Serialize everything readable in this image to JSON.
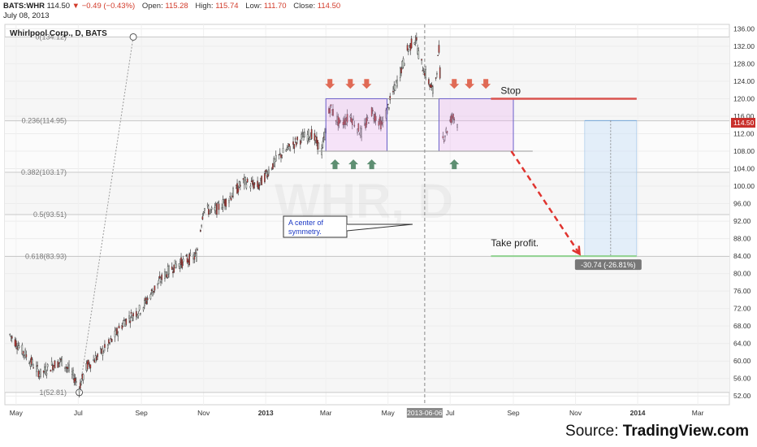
{
  "header": {
    "symbol": "BATS:WHR",
    "price": "114.50",
    "change": "▼ −0.49 (−0.43%)",
    "open_label": "Open:",
    "open": "115.28",
    "high_label": "High:",
    "high": "115.74",
    "low_label": "Low:",
    "low": "111.70",
    "close_label": "Close:",
    "close": "114.50",
    "date": "July 08, 2013"
  },
  "chart_data": {
    "type": "candlestick",
    "title": "Whirlpool Corp., D, BATS",
    "watermark": "WHR, D",
    "x_ticks": [
      "May",
      "Jul",
      "Sep",
      "Nov",
      "2013",
      "Mar",
      "May",
      "Jul",
      "Sep",
      "Nov",
      "2014",
      "Mar"
    ],
    "x_tick_dates": [
      "2012-05-01",
      "2012-07-01",
      "2012-09-01",
      "2012-11-01",
      "2013-01-01",
      "2013-03-01",
      "2013-05-01",
      "2013-07-01",
      "2013-09-01",
      "2013-11-01",
      "2014-01-01",
      "2014-03-01"
    ],
    "x_range": [
      "2012-04-20",
      "2014-04-01"
    ],
    "y_ticks": [
      52,
      56,
      60,
      64,
      68,
      72,
      76,
      80,
      84,
      88,
      92,
      96,
      100,
      104,
      108,
      112,
      116,
      120,
      124,
      128,
      132,
      136
    ],
    "y_range": [
      50,
      137
    ],
    "last_price_label": "114.50",
    "cursor_date": "2013-06-06",
    "fib_levels": [
      {
        "label": "0(134.12)",
        "value": 134.12
      },
      {
        "label": "0.236(114.95)",
        "value": 114.95
      },
      {
        "label": "0.382(103.17)",
        "value": 103.17
      },
      {
        "label": "0.5(93.51)",
        "value": 93.51
      },
      {
        "label": "0.618(83.93)",
        "value": 83.93
      },
      {
        "label": "1(52.81)",
        "value": 52.81
      }
    ],
    "price_path": [
      [
        "2012-04-25",
        66
      ],
      [
        "2012-05-05",
        63
      ],
      [
        "2012-05-15",
        60
      ],
      [
        "2012-05-25",
        57
      ],
      [
        "2012-06-05",
        59
      ],
      [
        "2012-06-15",
        60
      ],
      [
        "2012-06-25",
        57
      ],
      [
        "2012-07-02",
        54
      ],
      [
        "2012-07-10",
        59
      ],
      [
        "2012-07-20",
        61
      ],
      [
        "2012-08-01",
        64
      ],
      [
        "2012-08-15",
        69
      ],
      [
        "2012-09-01",
        72
      ],
      [
        "2012-09-15",
        77
      ],
      [
        "2012-09-25",
        80
      ],
      [
        "2012-10-05",
        82
      ],
      [
        "2012-10-15",
        83
      ],
      [
        "2012-10-25",
        84
      ],
      [
        "2012-11-01",
        95
      ],
      [
        "2012-11-10",
        94
      ],
      [
        "2012-11-25",
        97
      ],
      [
        "2012-12-10",
        101
      ],
      [
        "2012-12-25",
        100
      ],
      [
        "2013-01-05",
        104
      ],
      [
        "2013-01-15",
        107
      ],
      [
        "2013-01-25",
        109
      ],
      [
        "2013-02-05",
        111
      ],
      [
        "2013-02-15",
        112
      ],
      [
        "2013-02-25",
        108
      ],
      [
        "2013-03-05",
        118
      ],
      [
        "2013-03-15",
        114
      ],
      [
        "2013-03-25",
        116
      ],
      [
        "2013-04-05",
        112
      ],
      [
        "2013-04-15",
        117
      ],
      [
        "2013-04-25",
        114
      ],
      [
        "2013-05-01",
        118
      ],
      [
        "2013-05-10",
        124
      ],
      [
        "2013-05-20",
        131
      ],
      [
        "2013-05-28",
        134
      ],
      [
        "2013-06-01",
        129
      ],
      [
        "2013-06-08",
        125
      ],
      [
        "2013-06-15",
        121
      ],
      [
        "2013-06-20",
        131
      ],
      [
        "2013-06-24",
        111
      ],
      [
        "2013-06-28",
        113
      ],
      [
        "2013-07-03",
        116
      ],
      [
        "2013-07-08",
        114.5
      ]
    ],
    "boxes": [
      {
        "from": "2013-03-01",
        "to": "2013-04-30",
        "low": 108,
        "high": 120
      },
      {
        "from": "2013-06-20",
        "to": "2013-09-01",
        "low": 108,
        "high": 120
      }
    ],
    "stop": {
      "label": "Stop",
      "value": 120,
      "from": "2013-08-10",
      "to": "2013-12-31"
    },
    "take_profit": {
      "label": "Take profit.",
      "value": 84,
      "from": "2013-08-10",
      "to": "2013-12-31"
    },
    "projection": {
      "from": [
        "2013-08-30",
        108
      ],
      "to": [
        "2013-11-05",
        84.5
      ]
    },
    "measure": {
      "from": "2013-11-10",
      "to": "2013-12-31",
      "top": 115,
      "bottom": 84,
      "label": "-30.74 (-26.81%)"
    },
    "callout": {
      "text": "A center of symmetry.",
      "text_line1": "A center of",
      "text_line2": "symmetry."
    },
    "down_arrows": [
      [
        "2013-03-05",
        123
      ],
      [
        "2013-03-25",
        123
      ],
      [
        "2013-04-10",
        123
      ],
      [
        "2013-07-05",
        123
      ],
      [
        "2013-07-20",
        123
      ],
      [
        "2013-08-05",
        123
      ]
    ],
    "up_arrows": [
      [
        "2013-03-10",
        105
      ],
      [
        "2013-03-28",
        105
      ],
      [
        "2013-04-15",
        105
      ],
      [
        "2013-07-05",
        105
      ]
    ]
  },
  "source": {
    "prefix": "Source: ",
    "brand": "TradingView.com"
  }
}
